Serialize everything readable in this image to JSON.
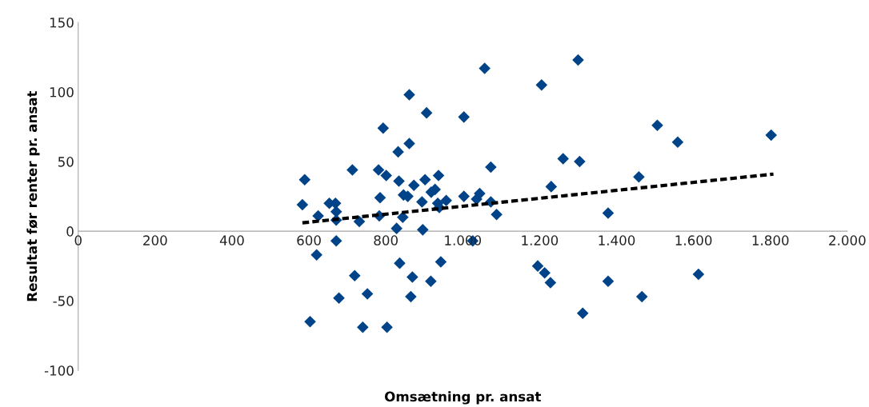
{
  "chart_data": {
    "type": "scatter",
    "xlabel": "Omsætning pr. ansat",
    "ylabel": "Resultat før renter pr. ansat",
    "xlim": [
      0,
      2000
    ],
    "ylim": [
      -100,
      150
    ],
    "xticks": [
      0,
      200,
      400,
      600,
      800,
      {
        "value": 1000,
        "label": "1.000"
      },
      {
        "value": 1200,
        "label": "1.200"
      },
      {
        "value": 1400,
        "label": "1.400"
      },
      {
        "value": 1600,
        "label": "1.600"
      },
      {
        "value": 1800,
        "label": "1.800"
      },
      {
        "value": 2000,
        "label": "2.000"
      }
    ],
    "yticks": [
      -100,
      -50,
      0,
      50,
      100,
      150
    ],
    "grid": false,
    "legend": false,
    "series": [
      {
        "color": "#004388",
        "marker": "diamond",
        "x": [
          583,
          589,
          620,
          603,
          624,
          653,
          669,
          671,
          671,
          671,
          678,
          713,
          719,
          731,
          740,
          752,
          781,
          783,
          785,
          793,
          801,
          803,
          828,
          832,
          834,
          836,
          844,
          846,
          857,
          861,
          861,
          865,
          869,
          873,
          894,
          896,
          902,
          906,
          917,
          918,
          928,
          935,
          937,
          939,
          943,
          957,
          1003,
          1003,
          1026,
          1036,
          1044,
          1057,
          1073,
          1073,
          1088,
          1195,
          1205,
          1213,
          1230,
          1228,
          1261,
          1300,
          1304,
          1312,
          1378,
          1378,
          1458,
          1466,
          1506,
          1559,
          1613,
          1802
        ],
        "values": [
          19,
          37,
          -17,
          -65,
          11,
          20,
          20,
          14,
          8,
          -7,
          -48,
          44,
          -32,
          7,
          -69,
          -45,
          44,
          11,
          24,
          74,
          40,
          -69,
          2,
          57,
          36,
          -23,
          10,
          26,
          25,
          98,
          63,
          -47,
          -33,
          33,
          21,
          1,
          37,
          85,
          -36,
          28,
          30,
          20,
          40,
          17,
          -22,
          22,
          82,
          25,
          -7,
          23,
          27,
          117,
          21,
          46,
          12,
          -25,
          105,
          -30,
          32,
          -37,
          52,
          123,
          50,
          -59,
          13,
          -36,
          39,
          -47,
          76,
          64,
          -31,
          69
        ]
      },
      {
        "type": "line",
        "color": "#000000",
        "line_style": "dashed",
        "marker": "none",
        "x": [
          583,
          1808
        ],
        "values": [
          6,
          41
        ]
      }
    ]
  }
}
